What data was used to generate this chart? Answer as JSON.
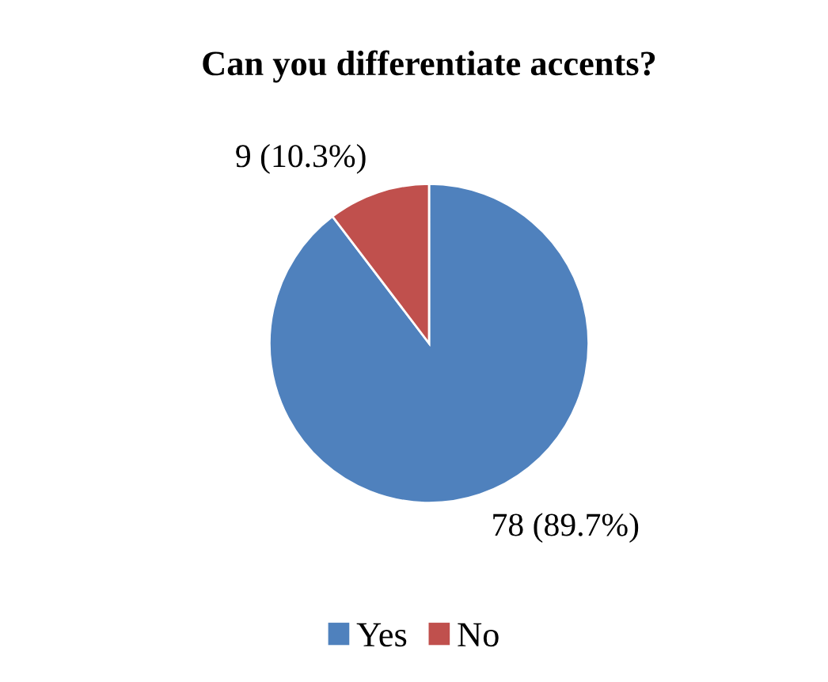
{
  "chart_data": {
    "type": "pie",
    "title": "Can you differentiate accents?",
    "categories": [
      "Yes",
      "No"
    ],
    "values": [
      78,
      9
    ],
    "colors": [
      "#4f81bd",
      "#c0504d"
    ],
    "value_labels": [
      "78 (89.7%)",
      "9 (10.3%)"
    ],
    "legend": "bottom"
  }
}
